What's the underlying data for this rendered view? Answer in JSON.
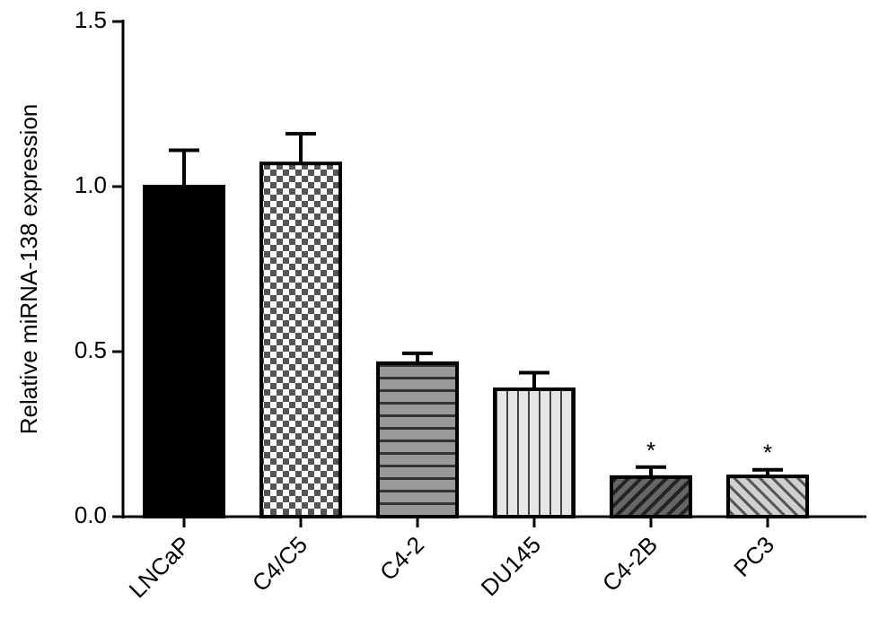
{
  "chart_data": {
    "type": "bar",
    "y_label": "Relative miRNA-138 expression",
    "categories": [
      "LNCaP",
      "C4/C5",
      "C4-2",
      "DU145",
      "C4-2B",
      "PC3"
    ],
    "values": [
      1.0,
      1.07,
      0.465,
      0.386,
      0.12,
      0.122
    ],
    "errors": [
      0.11,
      0.09,
      0.03,
      0.05,
      0.03,
      0.02
    ],
    "annotations": [
      null,
      null,
      null,
      null,
      "*",
      "*"
    ],
    "patterns": [
      "solid",
      "checker",
      "hlines",
      "vlines",
      "diag",
      "diag"
    ],
    "colors": [
      "#000000",
      "#8a8a8a",
      "#7a7a7a",
      "#e0e0e0",
      "#4a4a4a",
      "#b0b0b0"
    ],
    "ylim": [
      0,
      1.5
    ],
    "yticks": [
      {
        "value": 0,
        "label": "0.0"
      },
      {
        "value": 0.5,
        "label": "0.5"
      },
      {
        "value": 1,
        "label": "1.0"
      },
      {
        "value": 1.5,
        "label": "1.5"
      }
    ],
    "grid": false
  }
}
